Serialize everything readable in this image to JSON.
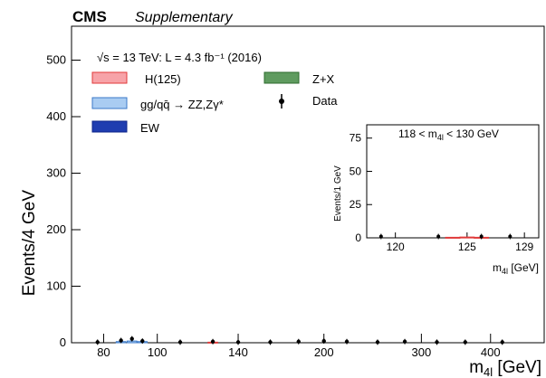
{
  "header": {
    "experiment": "CMS",
    "label": "Supplementary",
    "energy_lumi": "√s = 13 TeV: L = 4.3 fb⁻¹ (2016)"
  },
  "legend": [
    {
      "label": "H(125)",
      "color": "#f7a3a8",
      "edge": "#e03a3a",
      "kind": "box"
    },
    {
      "label": "Z+X",
      "color": "#5f9b5f",
      "edge": "#2e6b2e",
      "kind": "box"
    },
    {
      "label": "gg/qq̄ → ZZ,Zγ*",
      "color": "#a9ccf2",
      "edge": "#3a78c8",
      "kind": "box"
    },
    {
      "label": "Data",
      "color": "#000000",
      "kind": "marker"
    },
    {
      "label": "EW",
      "color": "#1f3db0",
      "edge": "#0d248a",
      "kind": "box"
    }
  ],
  "chart_data": [
    {
      "type": "bar",
      "role": "main",
      "ylabel": "Events/4 GeV",
      "xlabel": "m4l [GeV]",
      "xlabel_main": "m",
      "xlabel_sub": "4l",
      "xlabel_unit": " [GeV]",
      "x_scale": "log",
      "xlim": [
        70,
        500
      ],
      "ylim": [
        0,
        560
      ],
      "x_ticks": [
        80,
        100,
        140,
        200,
        300,
        400
      ],
      "y_ticks": [
        0,
        100,
        200,
        300,
        400,
        500
      ],
      "series": [
        {
          "name": "gg/qq̄ → ZZ,Zγ*",
          "x": [
            86,
            90,
            94
          ],
          "values": [
            2,
            3,
            2
          ]
        },
        {
          "name": "H(125)",
          "x": [
            126
          ],
          "values": [
            1
          ]
        }
      ],
      "data_points": {
        "name": "Data",
        "x": [
          78,
          86,
          90,
          94,
          110,
          126,
          140,
          160,
          180,
          200,
          220,
          250,
          280,
          320,
          360,
          420
        ],
        "y": [
          1,
          4,
          7,
          3,
          1,
          2,
          1,
          1,
          2,
          3,
          2,
          1,
          2,
          1,
          1,
          1
        ]
      }
    },
    {
      "type": "bar",
      "role": "inset",
      "title": "118 < m4l < 130 GeV",
      "title_pre": "118 < m",
      "title_sub": "4l",
      "title_post": " < 130 GeV",
      "ylabel": "Events/1 GeV",
      "xlabel": "m4l [GeV]",
      "xlabel_main": "m",
      "xlabel_sub": "4l",
      "xlabel_unit": " [GeV]",
      "xlim": [
        118,
        130
      ],
      "ylim": [
        0,
        85
      ],
      "x_ticks": [
        120,
        125,
        129
      ],
      "y_ticks": [
        0,
        25,
        50,
        75
      ],
      "series": [
        {
          "name": "H(125)",
          "x": [
            124,
            125,
            126
          ],
          "values": [
            0.4,
            0.6,
            0.4
          ]
        }
      ],
      "data_points": {
        "name": "Data",
        "x": [
          119,
          123,
          126,
          128
        ],
        "y": [
          1,
          1,
          1,
          1
        ]
      }
    }
  ]
}
